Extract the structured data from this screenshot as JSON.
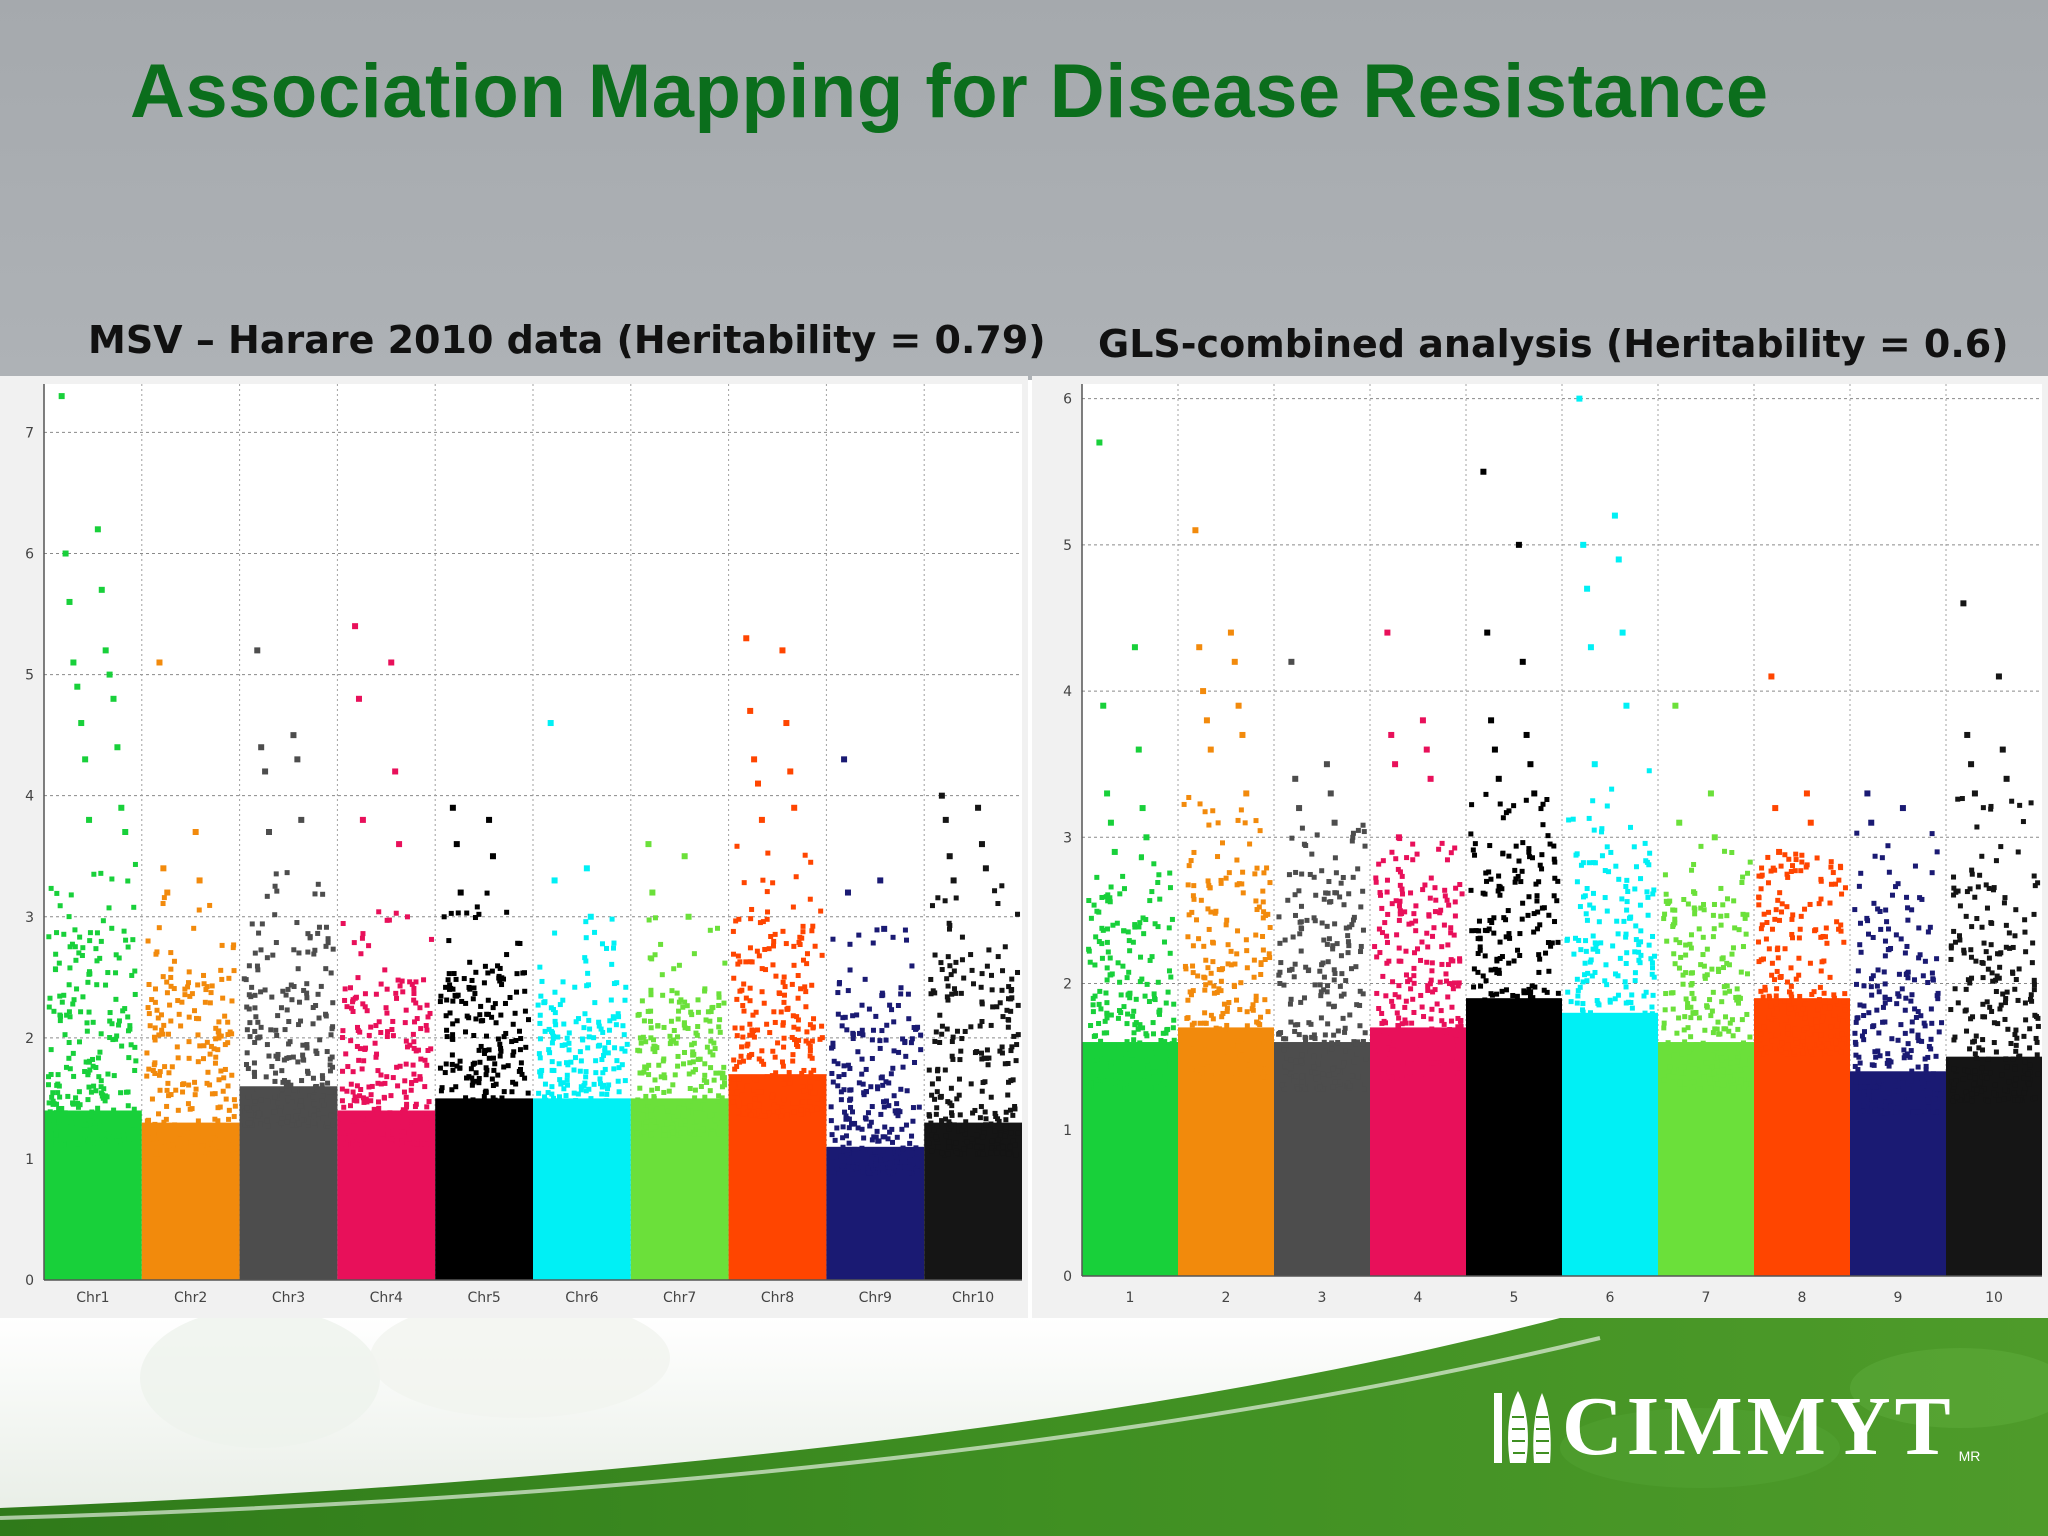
{
  "slide": {
    "title": "Association Mapping for Disease Resistance",
    "logo_text": "CIMMYT",
    "logo_sup": "MR",
    "logo_icon": "maize-wheat-logo-icon",
    "brand_color": "#0b6e1c"
  },
  "chart_data": [
    {
      "type": "scatter",
      "title": "MSV – Harare 2010 data (Heritability = 0.79)",
      "xlabel": "",
      "ylabel": "",
      "ylim": [
        0,
        7.4
      ],
      "yticks": [
        0,
        1,
        2,
        3,
        4,
        5,
        6,
        7
      ],
      "grid": true,
      "legend": "none",
      "categories": [
        "Chr1",
        "Chr2",
        "Chr3",
        "Chr4",
        "Chr5",
        "Chr6",
        "Chr7",
        "Chr8",
        "Chr9",
        "Chr10"
      ],
      "series": [
        {
          "color": "#18d03a",
          "base": 1.4,
          "top": 2.9,
          "peaks": [
            7.3,
            6.2,
            6.0,
            5.7,
            5.6,
            5.2,
            5.1,
            5.0,
            4.9,
            4.8,
            4.6,
            4.4,
            4.3,
            3.9,
            3.8,
            3.7
          ]
        },
        {
          "color": "#f28a0c",
          "base": 1.3,
          "top": 2.6,
          "peaks": [
            5.1,
            3.7,
            3.4,
            3.3,
            3.2
          ]
        },
        {
          "color": "#4d4d4d",
          "base": 1.6,
          "top": 2.9,
          "peaks": [
            5.2,
            4.5,
            4.4,
            4.3,
            4.2,
            3.8,
            3.7
          ]
        },
        {
          "color": "#e8105a",
          "base": 1.4,
          "top": 2.5,
          "peaks": [
            5.4,
            5.1,
            4.8,
            4.2,
            3.8,
            3.6
          ]
        },
        {
          "color": "#000000",
          "base": 1.5,
          "top": 2.6,
          "peaks": [
            3.9,
            3.8,
            3.6,
            3.5,
            3.2
          ]
        },
        {
          "color": "#00f0f5",
          "base": 1.5,
          "top": 2.5,
          "peaks": [
            4.6,
            3.4,
            3.3,
            3.0
          ]
        },
        {
          "color": "#6be03a",
          "base": 1.5,
          "top": 2.4,
          "peaks": [
            3.6,
            3.5,
            3.2,
            3.0
          ]
        },
        {
          "color": "#ff4500",
          "base": 1.7,
          "top": 3.0,
          "peaks": [
            5.3,
            5.2,
            4.7,
            4.6,
            4.3,
            4.2,
            4.1,
            3.9,
            3.8
          ]
        },
        {
          "color": "#1a1a73",
          "base": 1.1,
          "top": 2.4,
          "peaks": [
            4.3,
            3.3,
            3.2,
            2.9
          ]
        },
        {
          "color": "#151515",
          "base": 1.3,
          "top": 2.7,
          "peaks": [
            4.0,
            3.9,
            3.8,
            3.6,
            3.5,
            3.4,
            3.3
          ]
        }
      ]
    },
    {
      "type": "scatter",
      "title": "GLS-combined analysis (Heritability = 0.6)",
      "xlabel": "",
      "ylabel": "",
      "ylim": [
        0,
        6.1
      ],
      "yticks": [
        0,
        1,
        2,
        3,
        4,
        5,
        6
      ],
      "grid": true,
      "legend": "none",
      "categories": [
        "1",
        "2",
        "3",
        "4",
        "5",
        "6",
        "7",
        "8",
        "9",
        "10"
      ],
      "series": [
        {
          "color": "#18d03a",
          "base": 1.6,
          "top": 2.6,
          "peaks": [
            5.7,
            4.3,
            3.9,
            3.6,
            3.3,
            3.2,
            3.1,
            3.0,
            2.9
          ]
        },
        {
          "color": "#f28a0c",
          "base": 1.7,
          "top": 2.9,
          "peaks": [
            5.1,
            4.4,
            4.3,
            4.2,
            4.0,
            3.9,
            3.8,
            3.7,
            3.6,
            3.3
          ]
        },
        {
          "color": "#4d4d4d",
          "base": 1.6,
          "top": 2.8,
          "peaks": [
            4.2,
            3.5,
            3.4,
            3.3,
            3.2,
            3.1
          ]
        },
        {
          "color": "#e8105a",
          "base": 1.7,
          "top": 2.8,
          "peaks": [
            4.4,
            3.8,
            3.7,
            3.6,
            3.5,
            3.4,
            3.0
          ]
        },
        {
          "color": "#000000",
          "base": 1.9,
          "top": 3.0,
          "peaks": [
            5.5,
            5.0,
            4.4,
            4.2,
            3.8,
            3.7,
            3.6,
            3.5,
            3.4,
            3.3
          ]
        },
        {
          "color": "#00f0f5",
          "base": 1.8,
          "top": 2.9,
          "peaks": [
            6.0,
            5.2,
            5.0,
            4.9,
            4.7,
            4.4,
            4.3,
            3.9,
            3.5
          ]
        },
        {
          "color": "#6be03a",
          "base": 1.6,
          "top": 2.6,
          "peaks": [
            3.9,
            3.3,
            3.1,
            3.0
          ]
        },
        {
          "color": "#ff4500",
          "base": 1.9,
          "top": 2.8,
          "peaks": [
            4.1,
            3.3,
            3.2,
            3.1,
            2.9
          ]
        },
        {
          "color": "#1a1a73",
          "base": 1.4,
          "top": 2.6,
          "peaks": [
            3.3,
            3.2,
            3.1
          ]
        },
        {
          "color": "#151515",
          "base": 1.5,
          "top": 2.8,
          "peaks": [
            4.6,
            4.1,
            3.7,
            3.6,
            3.5,
            3.4,
            3.3
          ]
        }
      ]
    }
  ]
}
